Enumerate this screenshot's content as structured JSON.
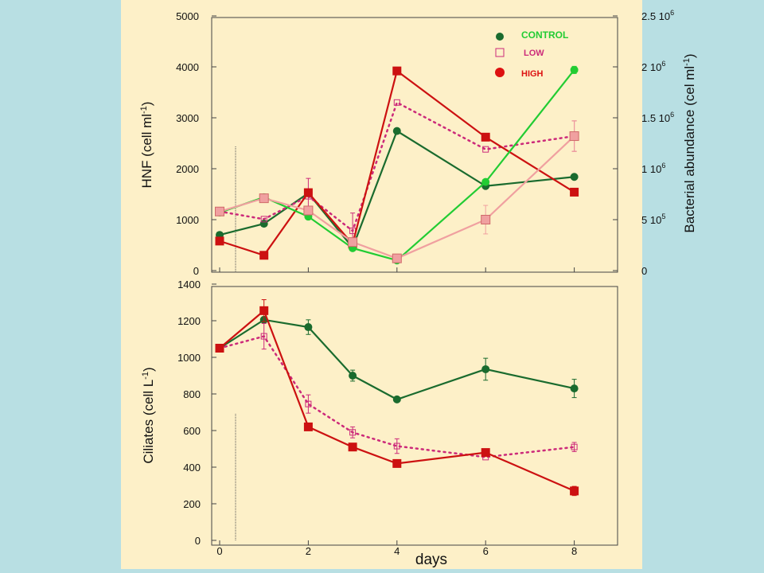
{
  "chart_data": [
    {
      "type": "line",
      "id": "top",
      "x": [
        0,
        1,
        2,
        3,
        4,
        6,
        8
      ],
      "ylabel_left": "HNF (cell ml-1)",
      "ylabel_right": "Bacterial abundance (cel ml-1)",
      "ylim_left": [
        0,
        5000
      ],
      "yticks_left": [
        "0",
        "1000",
        "2000",
        "3000",
        "4000",
        "5000"
      ],
      "ylim_right": [
        0,
        2500000
      ],
      "yticks_right": [
        "0",
        "5 10^5",
        "1 10^6",
        "1.5 10^6",
        "2 10^6",
        "2.5 10^6"
      ],
      "legend_position": "top-right",
      "legend": [
        {
          "label": "CONTROL",
          "color": "#1a6b2e",
          "marker": "circle"
        },
        {
          "label": "LOW",
          "color": "#cc2a7a",
          "marker": "open-square"
        },
        {
          "label": "HIGH",
          "color": "#dd1111",
          "marker": "circle"
        }
      ],
      "series": [
        {
          "name": "CONTROL",
          "values": [
            700,
            920,
            1520,
            450,
            2740,
            1660,
            1840
          ],
          "color": "#1a6b2e",
          "marker": "circle",
          "style": "solid"
        },
        {
          "name": "LOW",
          "values": [
            1160,
            1010,
            1460,
            780,
            3300,
            2380,
            2640
          ],
          "color": "#cc2a7a",
          "marker": "open-square",
          "style": "dotted",
          "err": [
            0,
            0,
            350,
            350,
            0,
            0,
            300
          ]
        },
        {
          "name": "HIGH",
          "values": [
            580,
            300,
            1530,
            520,
            3920,
            2620,
            1540
          ],
          "color": "#cc1111",
          "marker": "square",
          "style": "solid"
        },
        {
          "axis": "right",
          "values": [
            570000,
            720000,
            530000,
            220000,
            100000,
            870000,
            1970000
          ],
          "color": "#22cc33",
          "marker": "circle",
          "style": "solid",
          "err": [
            0,
            0,
            0,
            0,
            0,
            0,
            35000
          ]
        },
        {
          "axis": "right",
          "values": [
            580000,
            710000,
            590000,
            280000,
            120000,
            500000,
            1320000
          ],
          "color": "#f0a0a0",
          "marker": "square",
          "style": "solid",
          "err": [
            0,
            0,
            0,
            0,
            0,
            140000,
            150000
          ]
        }
      ]
    },
    {
      "type": "line",
      "id": "bottom",
      "x": [
        0,
        1,
        2,
        3,
        4,
        6,
        8
      ],
      "xlabel": "days",
      "xticks": [
        "0",
        "2",
        "4",
        "6",
        "8"
      ],
      "ylabel": "Ciliates (cell L-1)",
      "ylim": [
        0,
        1400
      ],
      "yticks": [
        "0",
        "200",
        "400",
        "600",
        "800",
        "1000",
        "1200",
        "1400"
      ],
      "series": [
        {
          "name": "CONTROL",
          "values": [
            1050,
            1205,
            1165,
            900,
            770,
            935,
            830
          ],
          "color": "#1a6b2e",
          "marker": "circle",
          "style": "solid",
          "err": [
            20,
            0,
            40,
            30,
            0,
            60,
            50
          ]
        },
        {
          "name": "LOW",
          "values": [
            1050,
            1115,
            745,
            590,
            515,
            455,
            510
          ],
          "color": "#cc2a7a",
          "marker": "open-square",
          "style": "dotted",
          "err": [
            0,
            70,
            50,
            30,
            40,
            0,
            25
          ]
        },
        {
          "name": "HIGH",
          "values": [
            1050,
            1255,
            620,
            510,
            420,
            480,
            270
          ],
          "color": "#cc1111",
          "marker": "square",
          "style": "solid",
          "err": [
            0,
            60,
            0,
            0,
            0,
            0,
            25
          ]
        }
      ]
    }
  ]
}
